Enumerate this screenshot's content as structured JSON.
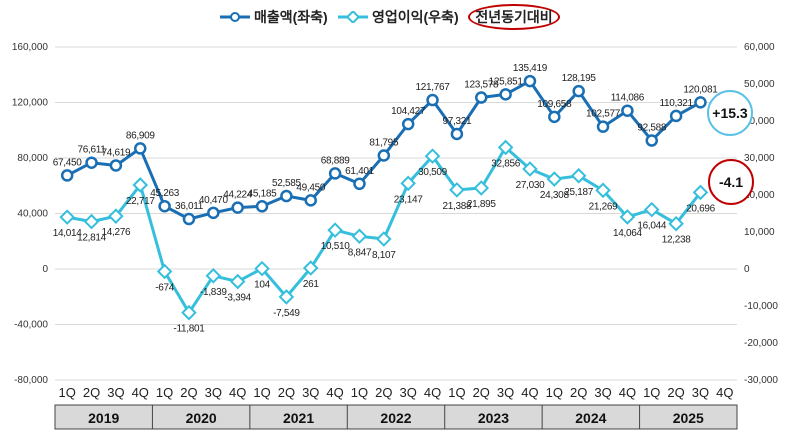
{
  "chart_data": {
    "type": "line",
    "legend": {
      "revenue": "매출액(좌축)",
      "profit": "영업이익(우축)",
      "yoy": "전년동기대비"
    },
    "colors": {
      "revenue": "#1a6fb4",
      "profit": "#35bfdc",
      "callout_up": "#5bc0e6",
      "callout_down": "#c00000",
      "year_band": "#d9d9d9"
    },
    "quarters": [
      "1Q",
      "2Q",
      "3Q",
      "4Q",
      "1Q",
      "2Q",
      "3Q",
      "4Q",
      "1Q",
      "2Q",
      "3Q",
      "4Q",
      "1Q",
      "2Q",
      "3Q",
      "4Q",
      "1Q",
      "2Q",
      "3Q",
      "4Q",
      "1Q",
      "2Q",
      "3Q",
      "4Q",
      "1Q",
      "2Q",
      "3Q",
      "4Q"
    ],
    "years": [
      "2019",
      "2020",
      "2021",
      "2022",
      "2023",
      "2024",
      "2025"
    ],
    "series": [
      {
        "name": "매출액(좌축)",
        "axis": "left",
        "values": [
          67450,
          76611,
          74619,
          86909,
          45263,
          36011,
          40470,
          44224,
          45185,
          52585,
          49450,
          68889,
          61401,
          81795,
          104427,
          121767,
          97321,
          123578,
          125851,
          135419,
          109658,
          128195,
          102577,
          114086,
          92588,
          110321,
          120081
        ],
        "labels": [
          "67,450",
          "76,611",
          "74,619",
          "86,909",
          "45,263",
          "36,011",
          "40,470",
          "44,224",
          "45,185",
          "52,585",
          "49,450",
          "68,889",
          "61,401",
          "81,795",
          "104,427",
          "121,767",
          "97,321",
          "123,578",
          "125,851",
          "135,419",
          "109,658",
          "128,195",
          "102,577",
          "114,086",
          "92,588",
          "110,321",
          "120,081"
        ]
      },
      {
        "name": "영업이익(우축)",
        "axis": "right",
        "values": [
          14014,
          12814,
          14276,
          22717,
          -674,
          -11801,
          -1839,
          -3394,
          104,
          -7549,
          261,
          10510,
          8847,
          8107,
          23147,
          30509,
          21388,
          21895,
          32856,
          27030,
          24308,
          25187,
          21269,
          14064,
          16044,
          12238,
          20696
        ],
        "labels": [
          "14,014",
          "12,814",
          "14,276",
          "22,717",
          "-674",
          "-11,801",
          "-1,839",
          "-3,394",
          "104",
          "-7,549",
          "261",
          "10,510",
          "8,847",
          "8,107",
          "23,147",
          "30,509",
          "21,388",
          "21,895",
          "32,856",
          "27,030",
          "24,308",
          "25,187",
          "21,269",
          "14,064",
          "16,044",
          "12,238",
          "20,696"
        ]
      }
    ],
    "y_left": {
      "min": -80000,
      "max": 160000,
      "ticks": [
        -80000,
        -40000,
        0,
        40000,
        80000,
        120000,
        160000
      ],
      "tick_labels": [
        "-80,000",
        "-40,000",
        "0",
        "40,000",
        "80,000",
        "120,000",
        "160,000"
      ]
    },
    "y_right": {
      "min": -30000,
      "max": 60000,
      "ticks": [
        -30000,
        -20000,
        -10000,
        0,
        10000,
        20000,
        30000,
        40000,
        50000,
        60000
      ],
      "tick_labels": [
        "-30,000",
        "-20,000",
        "-10,000",
        "0",
        "10,000",
        "20,000",
        "30,000",
        "40,000",
        "50,000",
        "60,000"
      ]
    },
    "annotations": {
      "revenue_yoy": "+15.3",
      "profit_yoy": "-4.1"
    }
  }
}
